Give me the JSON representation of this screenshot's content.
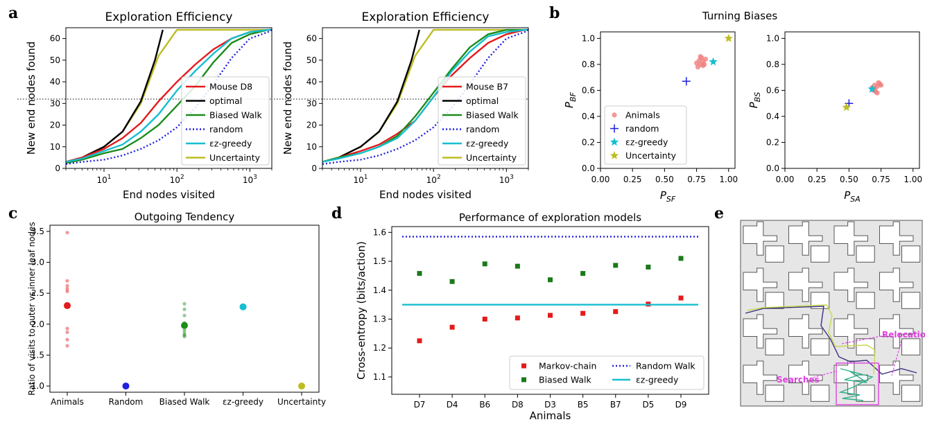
{
  "panel_letters": {
    "a": "a",
    "b": "b",
    "c": "c",
    "d": "d",
    "e": "e"
  },
  "chart_data": [
    {
      "id": "a1",
      "type": "line",
      "title": "Exploration Efficiency",
      "xlabel": "End nodes visited",
      "ylabel": "New end nodes found",
      "xscale": "log",
      "xlim": [
        3,
        2000
      ],
      "ylim": [
        0,
        65
      ],
      "yticks": [
        0,
        10,
        20,
        30,
        40,
        50,
        60
      ],
      "reference_line_y": 32,
      "legend_position": "lower-right",
      "series": [
        {
          "name": "Mouse D8",
          "color": "#e41a1c",
          "style": "solid",
          "x": [
            3,
            5,
            10,
            18,
            32,
            56,
            100,
            178,
            316,
            562,
            1000,
            1778,
            2000
          ],
          "y": [
            3,
            5,
            9,
            14,
            21,
            31,
            40,
            48,
            55,
            60,
            63,
            64,
            64
          ]
        },
        {
          "name": "optimal",
          "color": "#000000",
          "style": "solid",
          "x": [
            3,
            5,
            10,
            18,
            32,
            50,
            64
          ],
          "y": [
            3,
            5,
            10,
            17,
            31,
            50,
            64
          ]
        },
        {
          "name": "Biased Walk",
          "color": "#1a8c1a",
          "style": "solid",
          "x": [
            3,
            5,
            10,
            18,
            32,
            56,
            100,
            178,
            316,
            562,
            1000,
            1778,
            2000
          ],
          "y": [
            2.5,
            4,
            7,
            9,
            14,
            20,
            29,
            38,
            49,
            58,
            62,
            64,
            64
          ]
        },
        {
          "name": "random",
          "color": "#1f1fdd",
          "style": "dotted",
          "x": [
            3,
            5,
            10,
            18,
            32,
            56,
            100,
            178,
            316,
            562,
            1000,
            1778,
            2000
          ],
          "y": [
            2,
            3,
            4,
            6,
            9,
            13,
            19,
            28,
            39,
            51,
            60,
            63,
            64
          ]
        },
        {
          "name": "εz-greedy",
          "color": "#17becf",
          "style": "solid",
          "x": [
            3,
            5,
            10,
            18,
            32,
            56,
            100,
            178,
            316,
            562,
            1000,
            1778,
            2000
          ],
          "y": [
            3,
            4.5,
            8,
            11,
            17,
            25,
            36,
            45,
            53,
            60,
            63,
            64,
            64
          ]
        },
        {
          "name": "Uncertainty",
          "color": "#bcbd22",
          "style": "solid",
          "x": [
            3,
            5,
            10,
            18,
            32,
            56,
            100,
            178,
            316,
            1000,
            2000
          ],
          "y": [
            3,
            5,
            10,
            17,
            30,
            52,
            64,
            64,
            64,
            64,
            64
          ]
        }
      ]
    },
    {
      "id": "a2",
      "type": "line",
      "title": "Exploration Efficiency",
      "xlabel": "End nodes visited",
      "ylabel": "New end nodes found",
      "xscale": "log",
      "xlim": [
        3,
        2000
      ],
      "ylim": [
        0,
        65
      ],
      "yticks": [
        0,
        10,
        20,
        30,
        40,
        50,
        60
      ],
      "reference_line_y": 32,
      "legend_position": "lower-right",
      "series": [
        {
          "name": "Mouse B7",
          "color": "#e41a1c",
          "style": "solid",
          "x": [
            3,
            5,
            10,
            18,
            32,
            56,
            100,
            178,
            316,
            562,
            1000,
            1778,
            2000
          ],
          "y": [
            3,
            5,
            8,
            11,
            16,
            22,
            33,
            43,
            51,
            58,
            62,
            64,
            64
          ]
        },
        {
          "name": "optimal",
          "color": "#000000",
          "style": "solid",
          "x": [
            3,
            5,
            10,
            18,
            32,
            50,
            64
          ],
          "y": [
            3,
            5,
            10,
            17,
            31,
            50,
            64
          ]
        },
        {
          "name": "Biased Walk",
          "color": "#1a8c1a",
          "style": "solid",
          "x": [
            3,
            5,
            10,
            18,
            32,
            56,
            100,
            178,
            316,
            562,
            1000,
            1778,
            2000
          ],
          "y": [
            3,
            5,
            7,
            10,
            15,
            24,
            35,
            46,
            56,
            62,
            64,
            64,
            64
          ]
        },
        {
          "name": "random",
          "color": "#1f1fdd",
          "style": "dotted",
          "x": [
            3,
            5,
            10,
            18,
            32,
            56,
            100,
            178,
            316,
            562,
            1000,
            1778,
            2000
          ],
          "y": [
            2,
            3,
            4,
            6,
            9,
            13,
            19,
            28,
            39,
            51,
            60,
            63,
            64
          ]
        },
        {
          "name": "εz-greedy",
          "color": "#17becf",
          "style": "solid",
          "x": [
            3,
            5,
            10,
            18,
            32,
            56,
            100,
            178,
            316,
            562,
            1000,
            1778,
            2000
          ],
          "y": [
            3,
            4.5,
            7,
            10,
            14,
            22,
            33,
            45,
            54,
            61,
            63,
            64,
            64
          ]
        },
        {
          "name": "Uncertainty",
          "color": "#bcbd22",
          "style": "solid",
          "x": [
            3,
            5,
            10,
            18,
            32,
            56,
            100,
            178,
            316,
            1000,
            2000
          ],
          "y": [
            3,
            5,
            10,
            17,
            30,
            52,
            64,
            64,
            64,
            64,
            64
          ]
        }
      ]
    },
    {
      "id": "b1",
      "type": "scatter",
      "title": "Turning Biases",
      "xlabel": "P",
      "xlabel_sub": "SF",
      "ylabel": "P",
      "ylabel_sub": "BF",
      "xlim": [
        0,
        1.05
      ],
      "ylim": [
        0,
        1.05
      ],
      "xticks": [
        0.0,
        0.25,
        0.5,
        0.75,
        1.0
      ],
      "xtick_labels": [
        "0.00",
        "0.25",
        "0.50",
        "0.75",
        "1.00"
      ],
      "yticks": [
        0.0,
        0.2,
        0.4,
        0.6,
        0.8,
        1.0
      ],
      "ytick_labels": [
        "0.0",
        "0.2",
        "0.4",
        "0.6",
        "0.8",
        "1.0"
      ],
      "legend_position": "lower-left",
      "series": [
        {
          "name": "Animals",
          "marker": "circle",
          "color": "#f08080",
          "x": [
            0.76,
            0.78,
            0.8,
            0.77,
            0.79,
            0.81,
            0.75,
            0.78,
            0.8,
            0.82
          ],
          "y": [
            0.78,
            0.8,
            0.82,
            0.83,
            0.85,
            0.8,
            0.81,
            0.86,
            0.79,
            0.84
          ]
        },
        {
          "name": "random",
          "marker": "plus",
          "color": "#1f1fdd",
          "x": [
            0.67
          ],
          "y": [
            0.67
          ]
        },
        {
          "name": "εz-greedy",
          "marker": "star",
          "color": "#17becf",
          "x": [
            0.88
          ],
          "y": [
            0.82
          ]
        },
        {
          "name": "Uncertainty",
          "marker": "star",
          "color": "#bcbd22",
          "x": [
            1.0
          ],
          "y": [
            1.0
          ]
        }
      ]
    },
    {
      "id": "b2",
      "type": "scatter",
      "xlabel": "P",
      "xlabel_sub": "SA",
      "ylabel": "P",
      "ylabel_sub": "BS",
      "xlim": [
        0,
        1.05
      ],
      "ylim": [
        0,
        1.05
      ],
      "xticks": [
        0.0,
        0.25,
        0.5,
        0.75,
        1.0
      ],
      "xtick_labels": [
        "0.00",
        "0.25",
        "0.50",
        "0.75",
        "1.00"
      ],
      "yticks": [
        0.0,
        0.2,
        0.4,
        0.6,
        0.8,
        1.0
      ],
      "ytick_labels": [
        "0.0",
        "0.2",
        "0.4",
        "0.6",
        "0.8",
        "1.0"
      ],
      "series": [
        {
          "name": "Animals",
          "marker": "circle",
          "color": "#f08080",
          "x": [
            0.68,
            0.7,
            0.72,
            0.74,
            0.69,
            0.71,
            0.73,
            0.7,
            0.75,
            0.72
          ],
          "y": [
            0.62,
            0.64,
            0.63,
            0.65,
            0.6,
            0.59,
            0.66,
            0.61,
            0.64,
            0.58
          ]
        },
        {
          "name": "random",
          "marker": "plus",
          "color": "#1f1fdd",
          "x": [
            0.5
          ],
          "y": [
            0.5
          ]
        },
        {
          "name": "εz-greedy",
          "marker": "star",
          "color": "#17becf",
          "x": [
            0.68
          ],
          "y": [
            0.61
          ]
        },
        {
          "name": "Uncertainty",
          "marker": "star",
          "color": "#bcbd22",
          "x": [
            0.48
          ],
          "y": [
            0.47
          ]
        }
      ]
    },
    {
      "id": "c",
      "type": "scatter",
      "title": "Outgoing Tendency",
      "ylabel": "Ratio of visits to outer vs inner leaf nodes",
      "categories": [
        "Animals",
        "Random",
        "Biased Walk",
        "εz-greedy",
        "Uncertainty"
      ],
      "ylim": [
        0.9,
        3.6
      ],
      "yticks": [
        1.0,
        1.5,
        2.0,
        2.5,
        3.0,
        3.5
      ],
      "ytick_labels": [
        "1.0",
        "1.5",
        "2.0",
        "2.5",
        "3.0",
        "3.5"
      ],
      "points": [
        {
          "category": "Animals",
          "color": "#e41a1c",
          "individual": [
            3.48,
            2.7,
            2.62,
            2.57,
            2.53,
            2.28,
            1.93,
            1.87,
            1.75,
            1.65
          ],
          "mean": 2.3
        },
        {
          "category": "Random",
          "color": "#1f1fdd",
          "individual": [],
          "mean": 1.0
        },
        {
          "category": "Biased Walk",
          "color": "#1a8c1a",
          "individual": [
            2.33,
            2.24,
            2.14,
            2.02,
            1.92,
            1.88,
            1.84,
            1.82,
            1.8
          ],
          "mean": 1.98
        },
        {
          "category": "εz-greedy",
          "color": "#17becf",
          "individual": [],
          "mean": 2.28
        },
        {
          "category": "Uncertainty",
          "color": "#bcbd22",
          "individual": [],
          "mean": 1.0
        }
      ]
    },
    {
      "id": "d",
      "type": "scatter",
      "title": "Performance of exploration models",
      "xlabel": "Animals",
      "ylabel": "Cross-entropy (bits/action)",
      "categories": [
        "D7",
        "D4",
        "B6",
        "D8",
        "D3",
        "B5",
        "B7",
        "D5",
        "D9"
      ],
      "ylim": [
        1.04,
        1.62
      ],
      "yticks": [
        1.1,
        1.2,
        1.3,
        1.4,
        1.5,
        1.6
      ],
      "ytick_labels": [
        "1.1",
        "1.2",
        "1.3",
        "1.4",
        "1.5",
        "1.6"
      ],
      "legend_position": "lower-right",
      "series": [
        {
          "name": "Markov-chain",
          "kind": "marker",
          "color": "#e41a1c",
          "values": [
            1.225,
            1.272,
            1.3,
            1.304,
            1.313,
            1.32,
            1.326,
            1.352,
            1.373
          ]
        },
        {
          "name": "Biased Walk",
          "kind": "marker",
          "color": "#1a7a1a",
          "values": [
            1.458,
            1.43,
            1.491,
            1.483,
            1.436,
            1.458,
            1.486,
            1.48,
            1.51
          ]
        },
        {
          "name": "Random Walk",
          "kind": "hline",
          "style": "dotted",
          "color": "#1f1fdd",
          "value": 1.585
        },
        {
          "name": "εz-greedy",
          "kind": "hline",
          "style": "solid",
          "color": "#17becf",
          "value": 1.35
        }
      ]
    }
  ],
  "maze": {
    "labels": {
      "relocations": "Relocations",
      "searches": "Searches"
    },
    "colors": {
      "wall": "#555555",
      "shade": "#e6e6e6",
      "annotation": "#e040e0"
    }
  }
}
